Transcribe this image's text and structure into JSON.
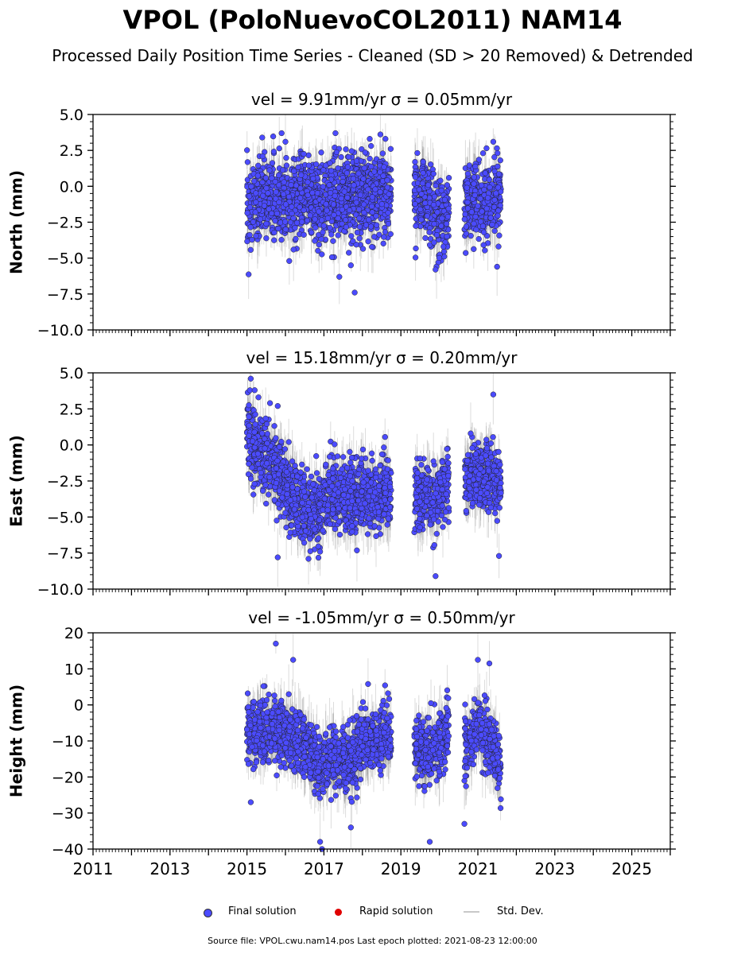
{
  "title": "VPOL (PoloNuevoCOL2011) NAM14",
  "subtitle": "Processed Daily Position Time Series - Cleaned (SD > 20 Removed) & Detrended",
  "chart_data": [
    {
      "type": "scatter",
      "title": "vel = 9.91mm/yr   σ = 0.05mm/yr",
      "ylabel": "North (mm)",
      "xlim": [
        2011,
        2026
      ],
      "ylim": [
        -10.0,
        5.0
      ],
      "yticks": [
        "5.0",
        "2.5",
        "0.0",
        "−2.5",
        "−5.0",
        "−7.5",
        "−10.0"
      ],
      "ytick_values": [
        5.0,
        2.5,
        0.0,
        -2.5,
        -5.0,
        -7.5,
        -10.0
      ],
      "segments": [
        {
          "x": [
            2015.0,
            2015.5,
            2016.0,
            2016.5,
            2017.0,
            2017.5,
            2018.0,
            2018.5,
            2018.75
          ],
          "y": [
            -1.3,
            -0.8,
            -1.2,
            -0.8,
            -1.2,
            -0.6,
            -0.7,
            -0.4,
            -0.4
          ],
          "spread": 1.4
        },
        {
          "x": [
            2019.35,
            2019.6,
            2019.85,
            2020.1,
            2020.25
          ],
          "y": [
            -0.6,
            -0.9,
            -1.6,
            -2.2,
            -2.0
          ],
          "spread": 1.3
        },
        {
          "x": [
            2020.65,
            2020.9,
            2021.1,
            2021.35,
            2021.6
          ],
          "y": [
            -1.3,
            -0.9,
            -1.2,
            -1.1,
            -0.9
          ],
          "spread": 1.4
        }
      ],
      "outliers": [
        [
          2015.9,
          3.7
        ],
        [
          2017.3,
          3.7
        ],
        [
          2016.0,
          3.1
        ],
        [
          2018.6,
          3.3
        ],
        [
          2016.1,
          -5.2
        ],
        [
          2017.8,
          -7.4
        ],
        [
          2017.7,
          -5.5
        ],
        [
          2017.4,
          -6.3
        ],
        [
          2019.9,
          -5.8
        ],
        [
          2021.5,
          -5.6
        ],
        [
          2021.4,
          3.1
        ]
      ],
      "point_count": 1950,
      "errbar": 1.6
    },
    {
      "type": "scatter",
      "title": "vel = 15.18mm/yr   σ = 0.20mm/yr",
      "ylabel": "East (mm)",
      "xlim": [
        2011,
        2026
      ],
      "ylim": [
        -10.0,
        5.0
      ],
      "yticks": [
        "5.0",
        "2.5",
        "0.0",
        "−2.5",
        "−5.0",
        "−7.5",
        "−10.0"
      ],
      "ytick_values": [
        5.0,
        2.5,
        0.0,
        -2.5,
        -5.0,
        -7.5,
        -10.0
      ],
      "segments": [
        {
          "x": [
            2015.0,
            2015.3,
            2015.7,
            2016.0,
            2016.5,
            2016.8,
            2017.2,
            2017.7,
            2018.2,
            2018.75
          ],
          "y": [
            0.8,
            -0.3,
            -1.5,
            -2.8,
            -4.3,
            -4.6,
            -3.3,
            -3.6,
            -3.7,
            -3.3
          ],
          "spread": 1.2
        },
        {
          "x": [
            2019.35,
            2019.6,
            2019.85,
            2020.1,
            2020.25
          ],
          "y": [
            -3.3,
            -3.6,
            -4.2,
            -3.0,
            -2.6
          ],
          "spread": 1.1
        },
        {
          "x": [
            2020.65,
            2020.9,
            2021.1,
            2021.35,
            2021.6
          ],
          "y": [
            -2.2,
            -2.1,
            -2.3,
            -2.0,
            -3.0
          ],
          "spread": 1.1
        }
      ],
      "outliers": [
        [
          2015.1,
          4.6
        ],
        [
          2015.2,
          3.8
        ],
        [
          2015.3,
          3.3
        ],
        [
          2015.6,
          2.9
        ],
        [
          2015.8,
          2.7
        ],
        [
          2015.8,
          -7.8
        ],
        [
          2019.9,
          -9.1
        ],
        [
          2021.4,
          3.5
        ],
        [
          2021.55,
          -7.7
        ],
        [
          2016.6,
          -7.9
        ],
        [
          2016.9,
          -7.4
        ]
      ],
      "point_count": 1950,
      "errbar": 1.6
    },
    {
      "type": "scatter",
      "title": "vel = -1.05mm/yr   σ = 0.50mm/yr",
      "ylabel": "Height (mm)",
      "xlim": [
        2011,
        2026
      ],
      "ylim": [
        -40,
        20
      ],
      "yticks": [
        "20",
        "10",
        "0",
        "−10",
        "−20",
        "−30",
        "−40"
      ],
      "ytick_values": [
        20,
        10,
        0,
        -10,
        -20,
        -30,
        -40
      ],
      "segments": [
        {
          "x": [
            2015.0,
            2015.5,
            2016.0,
            2016.4,
            2016.7,
            2017.0,
            2017.3,
            2017.6,
            2018.0,
            2018.4,
            2018.75
          ],
          "y": [
            -7,
            -7,
            -8,
            -10,
            -14,
            -17,
            -14,
            -16,
            -11,
            -9,
            -8
          ],
          "spread": 4.2
        },
        {
          "x": [
            2019.35,
            2019.6,
            2019.85,
            2020.1,
            2020.25
          ],
          "y": [
            -11,
            -13,
            -12,
            -11,
            -5
          ],
          "spread": 4.0
        },
        {
          "x": [
            2020.65,
            2020.9,
            2021.1,
            2021.35,
            2021.6
          ],
          "y": [
            -11,
            -8,
            -7,
            -12,
            -19
          ],
          "spread": 4.0
        }
      ],
      "outliers": [
        [
          2015.75,
          17
        ],
        [
          2016.2,
          12.5
        ],
        [
          2021.0,
          12.5
        ],
        [
          2016.9,
          -38
        ],
        [
          2016.95,
          -40
        ],
        [
          2019.75,
          -38
        ],
        [
          2020.65,
          -33
        ],
        [
          2015.1,
          -27
        ],
        [
          2017.7,
          -34
        ],
        [
          2021.3,
          11.5
        ]
      ],
      "point_count": 1950,
      "errbar": 6
    }
  ],
  "xticks": [
    "2011",
    "2013",
    "2015",
    "2017",
    "2019",
    "2021",
    "2023",
    "2025"
  ],
  "xtick_values": [
    2011,
    2013,
    2015,
    2017,
    2019,
    2021,
    2023,
    2025
  ],
  "legend": {
    "final": "Final solution",
    "rapid": "Rapid solution",
    "std": "Std. Dev."
  },
  "colors": {
    "final": "#4b4bff",
    "rapid": "#e00000",
    "errbar": "#808080"
  },
  "footer": "Source file: VPOL.cwu.nam14.pos  Last epoch plotted: 2021-08-23 12:00:00"
}
